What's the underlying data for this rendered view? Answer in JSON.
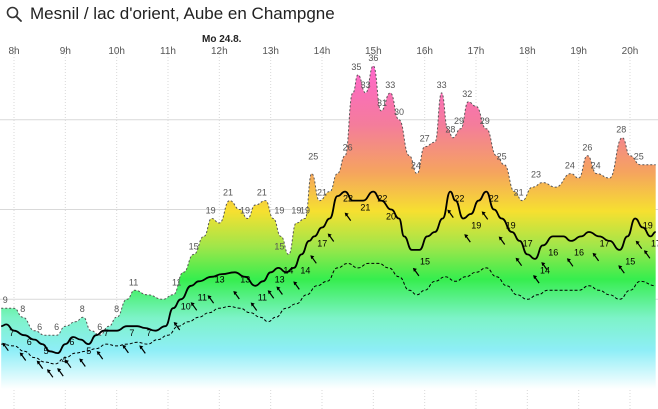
{
  "header": {
    "title": "Mesnil /  lac d'orient, Aube en Champgne",
    "search_icon": "search-icon"
  },
  "chart_data": {
    "type": "area",
    "title": "",
    "xlabel": "",
    "ylabel": "",
    "day_label": "Mo 24.8.",
    "x_ticks": [
      "8h",
      "9h",
      "10h",
      "11h",
      "12h",
      "13h",
      "14h",
      "15h",
      "16h",
      "17h",
      "18h",
      "19h",
      "20h"
    ],
    "xlim": [
      7.75,
      20.5
    ],
    "ylim": [
      0,
      38
    ],
    "grid": true,
    "series": [
      {
        "role": "gusts",
        "labels": [
          {
            "x": 7.83,
            "v": 9
          },
          {
            "x": 8.17,
            "v": 8
          },
          {
            "x": 8.5,
            "v": 6
          },
          {
            "x": 8.83,
            "v": 6
          },
          {
            "x": 9.33,
            "v": 8
          },
          {
            "x": 9.67,
            "v": 6
          },
          {
            "x": 10.0,
            "v": 8
          },
          {
            "x": 10.33,
            "v": 11
          },
          {
            "x": 11.17,
            "v": 11
          },
          {
            "x": 11.5,
            "v": 15
          },
          {
            "x": 11.83,
            "v": 19
          },
          {
            "x": 12.17,
            "v": 21
          },
          {
            "x": 12.5,
            "v": 19
          },
          {
            "x": 12.83,
            "v": 21
          },
          {
            "x": 13.17,
            "v": 19
          },
          {
            "x": 13.17,
            "v": 15
          },
          {
            "x": 13.5,
            "v": 19
          },
          {
            "x": 13.67,
            "v": 19
          },
          {
            "x": 13.83,
            "v": 25
          },
          {
            "x": 14.0,
            "v": 21
          },
          {
            "x": 14.5,
            "v": 26
          },
          {
            "x": 14.67,
            "v": 35
          },
          {
            "x": 14.85,
            "v": 33
          },
          {
            "x": 15.0,
            "v": 36
          },
          {
            "x": 15.17,
            "v": 31
          },
          {
            "x": 15.33,
            "v": 33
          },
          {
            "x": 15.5,
            "v": 30
          },
          {
            "x": 15.83,
            "v": 24
          },
          {
            "x": 16.0,
            "v": 27
          },
          {
            "x": 16.33,
            "v": 33
          },
          {
            "x": 16.5,
            "v": 28
          },
          {
            "x": 16.67,
            "v": 29
          },
          {
            "x": 16.83,
            "v": 32
          },
          {
            "x": 17.17,
            "v": 29
          },
          {
            "x": 17.5,
            "v": 25
          },
          {
            "x": 17.83,
            "v": 21
          },
          {
            "x": 18.17,
            "v": 23
          },
          {
            "x": 18.83,
            "v": 24
          },
          {
            "x": 19.17,
            "v": 26
          },
          {
            "x": 19.33,
            "v": 24
          },
          {
            "x": 19.83,
            "v": 28
          },
          {
            "x": 20.17,
            "v": 25
          }
        ]
      },
      {
        "role": "wind",
        "labels": [
          {
            "x": 7.83,
            "v": 7
          },
          {
            "x": 8.17,
            "v": 6
          },
          {
            "x": 8.5,
            "v": 5
          },
          {
            "x": 8.85,
            "v": 4
          },
          {
            "x": 9.0,
            "v": 6
          },
          {
            "x": 9.33,
            "v": 5
          },
          {
            "x": 9.67,
            "v": 7
          },
          {
            "x": 10.17,
            "v": 7
          },
          {
            "x": 10.5,
            "v": 7
          },
          {
            "x": 11.17,
            "v": 10
          },
          {
            "x": 11.5,
            "v": 11
          },
          {
            "x": 11.83,
            "v": 13
          },
          {
            "x": 12.33,
            "v": 13
          },
          {
            "x": 12.67,
            "v": 11
          },
          {
            "x": 13.0,
            "v": 13
          },
          {
            "x": 13.17,
            "v": 14
          },
          {
            "x": 13.5,
            "v": 14
          },
          {
            "x": 13.83,
            "v": 17
          },
          {
            "x": 14.33,
            "v": 22
          },
          {
            "x": 14.67,
            "v": 21
          },
          {
            "x": 15.0,
            "v": 22
          },
          {
            "x": 15.17,
            "v": 20
          },
          {
            "x": 15.83,
            "v": 15
          },
          {
            "x": 16.5,
            "v": 22
          },
          {
            "x": 16.83,
            "v": 19
          },
          {
            "x": 17.17,
            "v": 22
          },
          {
            "x": 17.5,
            "v": 19
          },
          {
            "x": 17.83,
            "v": 17
          },
          {
            "x": 18.17,
            "v": 14
          },
          {
            "x": 18.33,
            "v": 16
          },
          {
            "x": 18.83,
            "v": 16
          },
          {
            "x": 19.33,
            "v": 17
          },
          {
            "x": 19.83,
            "v": 15
          },
          {
            "x": 20.17,
            "v": 19
          },
          {
            "x": 20.33,
            "v": 17
          }
        ],
        "arrows": [
          {
            "x": 7.83
          },
          {
            "x": 8.17
          },
          {
            "x": 8.5
          },
          {
            "x": 8.7
          },
          {
            "x": 8.9
          },
          {
            "x": 9.05
          },
          {
            "x": 9.33
          },
          {
            "x": 9.67
          },
          {
            "x": 10.17
          },
          {
            "x": 10.5
          },
          {
            "x": 11.17
          },
          {
            "x": 11.5
          },
          {
            "x": 11.83
          },
          {
            "x": 12.33
          },
          {
            "x": 12.67
          },
          {
            "x": 13.0
          },
          {
            "x": 13.17
          },
          {
            "x": 13.5
          },
          {
            "x": 13.83
          },
          {
            "x": 14.17
          },
          {
            "x": 14.5
          },
          {
            "x": 15.83
          },
          {
            "x": 16.5
          },
          {
            "x": 16.83
          },
          {
            "x": 17.17
          },
          {
            "x": 17.5
          },
          {
            "x": 17.83
          },
          {
            "x": 18.17
          },
          {
            "x": 18.33
          },
          {
            "x": 18.83
          },
          {
            "x": 19.33
          },
          {
            "x": 19.83
          },
          {
            "x": 20.17
          },
          {
            "x": 20.33
          }
        ]
      },
      {
        "role": "minimum",
        "labels": []
      }
    ],
    "gusts_curve": [
      [
        7.75,
        9
      ],
      [
        8.0,
        9
      ],
      [
        8.17,
        8
      ],
      [
        8.4,
        6.5
      ],
      [
        8.6,
        6
      ],
      [
        8.83,
        6
      ],
      [
        9.0,
        7
      ],
      [
        9.2,
        7.5
      ],
      [
        9.35,
        8
      ],
      [
        9.5,
        6.5
      ],
      [
        9.67,
        6
      ],
      [
        9.85,
        7
      ],
      [
        10.0,
        8
      ],
      [
        10.2,
        10
      ],
      [
        10.35,
        11
      ],
      [
        10.6,
        10.5
      ],
      [
        10.9,
        10
      ],
      [
        11.1,
        10.5
      ],
      [
        11.3,
        13
      ],
      [
        11.5,
        15
      ],
      [
        11.7,
        17
      ],
      [
        11.85,
        19
      ],
      [
        12.0,
        18.5
      ],
      [
        12.2,
        21
      ],
      [
        12.4,
        20
      ],
      [
        12.55,
        19
      ],
      [
        12.7,
        20.5
      ],
      [
        12.9,
        21
      ],
      [
        13.05,
        19
      ],
      [
        13.2,
        17
      ],
      [
        13.35,
        15
      ],
      [
        13.5,
        18.5
      ],
      [
        13.67,
        19
      ],
      [
        13.8,
        24
      ],
      [
        13.95,
        21
      ],
      [
        14.15,
        22
      ],
      [
        14.3,
        24
      ],
      [
        14.45,
        26
      ],
      [
        14.6,
        33
      ],
      [
        14.7,
        35
      ],
      [
        14.85,
        33
      ],
      [
        15.0,
        36
      ],
      [
        15.15,
        31
      ],
      [
        15.33,
        33
      ],
      [
        15.5,
        30
      ],
      [
        15.7,
        26
      ],
      [
        15.85,
        24
      ],
      [
        16.0,
        27
      ],
      [
        16.2,
        27.5
      ],
      [
        16.33,
        33
      ],
      [
        16.45,
        29
      ],
      [
        16.55,
        28
      ],
      [
        16.7,
        29
      ],
      [
        16.85,
        32
      ],
      [
        17.0,
        31.5
      ],
      [
        17.2,
        29
      ],
      [
        17.4,
        26
      ],
      [
        17.55,
        25
      ],
      [
        17.75,
        22
      ],
      [
        17.9,
        21
      ],
      [
        18.1,
        22.5
      ],
      [
        18.3,
        23
      ],
      [
        18.55,
        22.5
      ],
      [
        18.85,
        24
      ],
      [
        19.0,
        23.5
      ],
      [
        19.17,
        26
      ],
      [
        19.35,
        24
      ],
      [
        19.6,
        23.5
      ],
      [
        19.85,
        28
      ],
      [
        20.0,
        26
      ],
      [
        20.2,
        25
      ],
      [
        20.5,
        25
      ]
    ],
    "wind_curve": [
      [
        7.75,
        7
      ],
      [
        7.85,
        7.2
      ],
      [
        8.0,
        6.5
      ],
      [
        8.2,
        6
      ],
      [
        8.4,
        5.5
      ],
      [
        8.55,
        5
      ],
      [
        8.7,
        4.2
      ],
      [
        8.85,
        4
      ],
      [
        9.0,
        5
      ],
      [
        9.15,
        5.8
      ],
      [
        9.3,
        5.5
      ],
      [
        9.45,
        5
      ],
      [
        9.6,
        6
      ],
      [
        9.75,
        6.5
      ],
      [
        10.0,
        6.5
      ],
      [
        10.2,
        7
      ],
      [
        10.4,
        7
      ],
      [
        10.55,
        6.8
      ],
      [
        10.75,
        6.5
      ],
      [
        10.95,
        7
      ],
      [
        11.1,
        9
      ],
      [
        11.25,
        10
      ],
      [
        11.45,
        11.5
      ],
      [
        11.6,
        12
      ],
      [
        11.85,
        12.5
      ],
      [
        12.05,
        12.8
      ],
      [
        12.3,
        13
      ],
      [
        12.5,
        12.5
      ],
      [
        12.7,
        11.5
      ],
      [
        12.85,
        12
      ],
      [
        13.0,
        13
      ],
      [
        13.15,
        13.5
      ],
      [
        13.3,
        13
      ],
      [
        13.45,
        13.5
      ],
      [
        13.6,
        15
      ],
      [
        13.75,
        16.5
      ],
      [
        13.85,
        17
      ],
      [
        14.0,
        18
      ],
      [
        14.15,
        19
      ],
      [
        14.3,
        21.5
      ],
      [
        14.45,
        22
      ],
      [
        14.6,
        21
      ],
      [
        14.8,
        21
      ],
      [
        15.0,
        22
      ],
      [
        15.15,
        21
      ],
      [
        15.35,
        20
      ],
      [
        15.5,
        19
      ],
      [
        15.6,
        17
      ],
      [
        15.75,
        15.5
      ],
      [
        15.9,
        15.5
      ],
      [
        16.05,
        17
      ],
      [
        16.2,
        17.5
      ],
      [
        16.35,
        19
      ],
      [
        16.5,
        22
      ],
      [
        16.6,
        21
      ],
      [
        16.75,
        19
      ],
      [
        16.9,
        19.5
      ],
      [
        17.05,
        21
      ],
      [
        17.2,
        22
      ],
      [
        17.35,
        20
      ],
      [
        17.5,
        19
      ],
      [
        17.7,
        17.5
      ],
      [
        17.85,
        16.5
      ],
      [
        18.0,
        15
      ],
      [
        18.15,
        14.5
      ],
      [
        18.3,
        16
      ],
      [
        18.5,
        17
      ],
      [
        18.7,
        17
      ],
      [
        18.85,
        16.5
      ],
      [
        19.05,
        17
      ],
      [
        19.2,
        17.5
      ],
      [
        19.4,
        17
      ],
      [
        19.6,
        16.5
      ],
      [
        19.8,
        15.5
      ],
      [
        19.95,
        17
      ],
      [
        20.1,
        19
      ],
      [
        20.25,
        18
      ],
      [
        20.4,
        17
      ],
      [
        20.5,
        17.5
      ]
    ],
    "minimum_curve": [
      [
        7.75,
        5
      ],
      [
        8.0,
        4.8
      ],
      [
        8.2,
        4.2
      ],
      [
        8.4,
        3.5
      ],
      [
        8.6,
        3
      ],
      [
        8.8,
        2.8
      ],
      [
        9.0,
        3.5
      ],
      [
        9.2,
        4
      ],
      [
        9.4,
        4.2
      ],
      [
        9.6,
        4.5
      ],
      [
        9.8,
        5
      ],
      [
        10.0,
        4.8
      ],
      [
        10.2,
        5
      ],
      [
        10.4,
        5.2
      ],
      [
        10.6,
        5
      ],
      [
        10.8,
        5.5
      ],
      [
        11.0,
        6
      ],
      [
        11.2,
        7
      ],
      [
        11.4,
        7.5
      ],
      [
        11.6,
        8
      ],
      [
        11.8,
        8.5
      ],
      [
        12.0,
        9
      ],
      [
        12.2,
        9.2
      ],
      [
        12.4,
        9
      ],
      [
        12.6,
        8.5
      ],
      [
        12.8,
        8
      ],
      [
        12.95,
        7.5
      ],
      [
        13.1,
        8
      ],
      [
        13.3,
        9
      ],
      [
        13.5,
        9.5
      ],
      [
        13.7,
        10.5
      ],
      [
        13.9,
        11.5
      ],
      [
        14.1,
        12
      ],
      [
        14.3,
        13.5
      ],
      [
        14.5,
        14
      ],
      [
        14.7,
        13.5
      ],
      [
        14.9,
        14
      ],
      [
        15.1,
        14
      ],
      [
        15.3,
        13.5
      ],
      [
        15.5,
        12.5
      ],
      [
        15.7,
        11
      ],
      [
        15.85,
        10.5
      ],
      [
        16.0,
        11
      ],
      [
        16.2,
        12
      ],
      [
        16.4,
        12.5
      ],
      [
        16.6,
        12
      ],
      [
        16.8,
        12.5
      ],
      [
        17.0,
        13
      ],
      [
        17.2,
        13.5
      ],
      [
        17.4,
        12.5
      ],
      [
        17.6,
        11.5
      ],
      [
        17.8,
        10.5
      ],
      [
        18.0,
        10
      ],
      [
        18.2,
        10.5
      ],
      [
        18.4,
        11
      ],
      [
        18.6,
        11
      ],
      [
        18.8,
        11
      ],
      [
        19.0,
        11
      ],
      [
        19.2,
        11.5
      ],
      [
        19.4,
        11
      ],
      [
        19.6,
        10.5
      ],
      [
        19.8,
        10
      ],
      [
        20.0,
        11
      ],
      [
        20.2,
        12
      ],
      [
        20.5,
        11.5
      ]
    ],
    "colors": {
      "curve_wind": "#000000",
      "curve_minimum": "#000000",
      "gust_text": "#555555",
      "wind_text": "#000000",
      "grid": "#d9d9d9",
      "tick_text": "#555555"
    }
  }
}
